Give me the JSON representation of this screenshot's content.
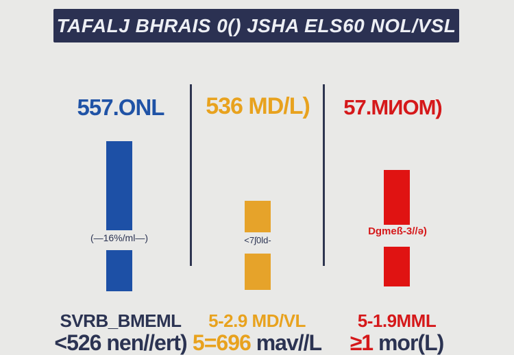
{
  "page": {
    "background": "#e9e9e7"
  },
  "banner": {
    "title": "TAFALJ BHRAIS 0() JSHA ELS60 NOL/VSL",
    "background": "#2b3152",
    "text_color": "#edeff4"
  },
  "divider_color": "#2e3550",
  "columns": [
    {
      "header": "557.ONL",
      "accent_text": "#2053a6",
      "bar_color": "#1d50a6",
      "bar_annotation": "(—16%/ml—)",
      "annotation_color": "#2b3352",
      "footer_line1": "SVRB_BMEML",
      "footer_line1_color": "#2b3352",
      "footer_line2_part1": "<526 ",
      "footer_line2_part1_color": "#2b3352",
      "footer_line2_part2": "nen//ert)",
      "footer_line2_part2_color": "#2b3352"
    },
    {
      "header": "536 MD/L)",
      "accent_text": "#e8a21e",
      "bar_color": "#e6a32a",
      "bar_annotation": "<7ʃ0ld-",
      "annotation_color": "#2b3352",
      "footer_line1": "5-2.9 MD/VL",
      "footer_line1_color": "#e8a21e",
      "footer_line2_part1": "5=696 ",
      "footer_line2_part1_color": "#e8a21e",
      "footer_line2_part2": "mav//L",
      "footer_line2_part2_color": "#2b3352"
    },
    {
      "header": "57.MИOM)",
      "accent_text": "#d5181a",
      "bar_color": "#e01312",
      "bar_annotation": "Dgmeß-3//ə)",
      "annotation_color": "#d5181a",
      "footer_line1": "5-1.9MML",
      "footer_line1_color": "#d5181a",
      "footer_line2_part1": "≥1 ",
      "footer_line2_part1_color": "#d5181a",
      "footer_line2_part2": "mor(L)",
      "footer_line2_part2_color": "#2b3352"
    }
  ],
  "chart_data": {
    "type": "bar",
    "title": "TAFALJ BHRAIS 0() JSHA ELS60 NOL/VSL",
    "categories": [
      "557.ONL",
      "536 MD/L)",
      "57.MИOM)"
    ],
    "series": [
      {
        "name": "upper-segment-height-px",
        "values": [
          130,
          46,
          80
        ]
      },
      {
        "name": "lower-segment-height-px",
        "values": [
          60,
          53,
          58
        ]
      }
    ],
    "bar_annotations": [
      "(—16%/ml—)",
      "<7ʃ0ld-",
      "Dgmeß-3//ə)"
    ],
    "bar_colors": [
      "#1d50a6",
      "#e6a32a",
      "#e01312"
    ],
    "footer_labels": [
      [
        "SVRB_BMEML",
        "<526 nen//ert)"
      ],
      [
        "5-2.9 MD/VL",
        "5=696 mav//L"
      ],
      [
        "5-1.9MML",
        "≥1 mor(L)"
      ]
    ],
    "xlabel": "",
    "ylabel": "",
    "grid": false,
    "legend_position": "none"
  }
}
